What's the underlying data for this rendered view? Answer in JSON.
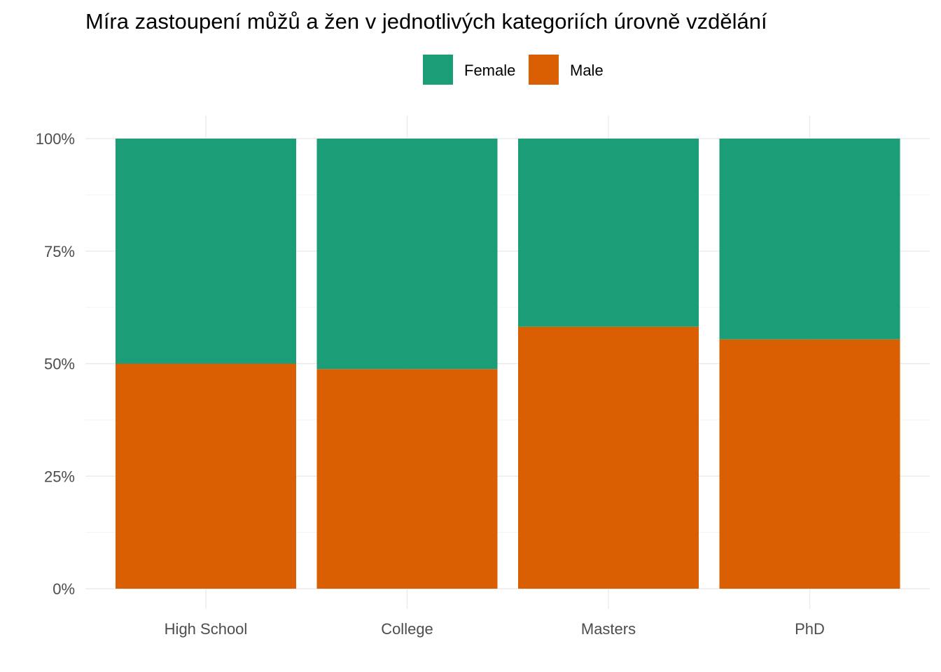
{
  "chart_data": {
    "type": "bar",
    "stacked": true,
    "normalized": true,
    "title": "Míra zastoupení můžů a žen v jednotlivých kategoriích úrovně vzdělání",
    "xlabel": "",
    "ylabel": "",
    "categories": [
      "High School",
      "College",
      "Masters",
      "PhD"
    ],
    "series": [
      {
        "name": "Male",
        "color": "#d95f02",
        "values": [
          0.5,
          0.488,
          0.582,
          0.554
        ]
      },
      {
        "name": "Female",
        "color": "#1b9e77",
        "values": [
          0.5,
          0.512,
          0.418,
          0.446
        ]
      }
    ],
    "legend": {
      "position": "top",
      "items": [
        {
          "label": "Female",
          "color": "#1b9e77"
        },
        {
          "label": "Male",
          "color": "#d95f02"
        }
      ]
    },
    "ylim": [
      0,
      1
    ],
    "yticks": [
      0,
      0.25,
      0.5,
      0.75,
      1
    ],
    "ytick_labels": [
      "0%",
      "25%",
      "50%",
      "75%",
      "100%"
    ],
    "grid": true
  }
}
